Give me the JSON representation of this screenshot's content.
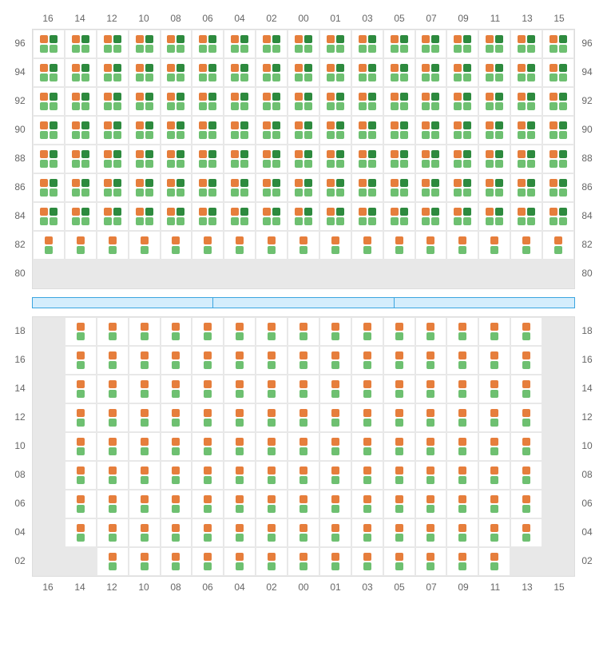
{
  "columns": [
    "16",
    "14",
    "12",
    "10",
    "08",
    "06",
    "04",
    "02",
    "00",
    "01",
    "03",
    "05",
    "07",
    "09",
    "11",
    "13",
    "15"
  ],
  "top": {
    "rows": [
      "96",
      "94",
      "92",
      "90",
      "88",
      "86",
      "84",
      "82",
      "80"
    ],
    "cellTypes": {
      "full": {
        "top": [
          "orange",
          "dgreen"
        ],
        "bottom": [
          "lgreen",
          "lgreen"
        ]
      },
      "single": {
        "top": [
          "orange"
        ],
        "bottom": [
          "lgreen"
        ]
      },
      "empty": true
    },
    "pattern": {
      "96": "full",
      "94": "full",
      "92": "full",
      "90": "full",
      "88": "full",
      "86": "full",
      "84": "full",
      "82": "single",
      "80": "empty"
    }
  },
  "bottom": {
    "rows": [
      "18",
      "16",
      "14",
      "12",
      "10",
      "08",
      "06",
      "04",
      "02"
    ],
    "cellTypes": {
      "single": {
        "top": [
          "orange"
        ],
        "bottom": [
          "lgreen"
        ]
      },
      "empty": true
    },
    "emptyCells": {
      "18": [
        0,
        16
      ],
      "16": [
        0,
        16
      ],
      "14": [
        0,
        16
      ],
      "12": [
        0,
        16
      ],
      "10": [
        0,
        16
      ],
      "08": [
        0,
        16
      ],
      "06": [
        0,
        16
      ],
      "04": [
        0,
        16
      ],
      "02": [
        0,
        1,
        15,
        16
      ]
    }
  },
  "colors": {
    "orange": "#e67e3c",
    "darkGreen": "#2d8a3e",
    "lightGreen": "#6ec071",
    "gridBorder": "#e8e8e8",
    "emptyCell": "#e8e8e8",
    "labelText": "#666666",
    "sepBorder": "#3aa5e0",
    "sepFill": "#d4edfc"
  },
  "layout": {
    "cellHeight": 36,
    "squareSize": 10,
    "labelFontSize": 12,
    "sepSegments": 3
  }
}
